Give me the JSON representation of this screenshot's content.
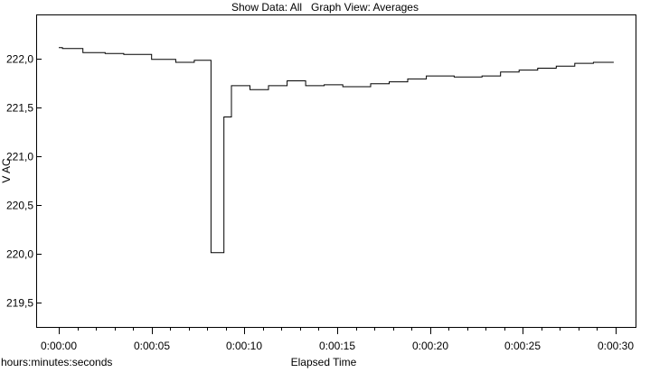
{
  "header": {
    "show_data_label": "Show Data: All",
    "graph_view_label": "Graph View: Averages"
  },
  "chart_data": {
    "type": "line",
    "line_style": "step",
    "title": "",
    "xlabel": "Elapsed Time",
    "x_unit_label": "hours:minutes:seconds",
    "ylabel": "V AC",
    "xlim": [
      0,
      30
    ],
    "ylim": [
      219.25,
      222.45
    ],
    "grid": false,
    "x_ticks": [
      {
        "value": 0,
        "label": "0:00:00"
      },
      {
        "value": 5,
        "label": "0:00:05"
      },
      {
        "value": 10,
        "label": "0:00:10"
      },
      {
        "value": 15,
        "label": "0:00:15"
      },
      {
        "value": 20,
        "label": "0:00:20"
      },
      {
        "value": 25,
        "label": "0:00:25"
      },
      {
        "value": 30,
        "label": "0:00:30"
      }
    ],
    "y_ticks": [
      {
        "value": 219.5,
        "label": "219,5"
      },
      {
        "value": 220.0,
        "label": "220,0"
      },
      {
        "value": 220.5,
        "label": "220,5"
      },
      {
        "value": 221.0,
        "label": "221,0"
      },
      {
        "value": 221.5,
        "label": "221,5"
      },
      {
        "value": 222.0,
        "label": "222,0"
      }
    ],
    "series": [
      {
        "color": "#000000",
        "x": [
          0,
          0.2,
          1.3,
          2.5,
          3.5,
          5.0,
          6.3,
          7.3,
          8.2,
          8.9,
          9.3,
          10.3,
          11.3,
          12.3,
          13.3,
          14.3,
          15.3,
          16.8,
          17.8,
          18.8,
          19.8,
          21.3,
          22.8,
          23.8,
          24.8,
          25.8,
          26.8,
          27.8,
          28.8,
          29.8
        ],
        "y": [
          222.11,
          222.1,
          222.06,
          222.05,
          222.04,
          221.99,
          221.96,
          221.98,
          220.01,
          221.4,
          221.72,
          221.68,
          221.72,
          221.77,
          221.72,
          221.73,
          221.71,
          221.74,
          221.76,
          221.79,
          221.82,
          221.81,
          221.82,
          221.86,
          221.88,
          221.9,
          221.92,
          221.95,
          221.96,
          221.96
        ]
      }
    ]
  }
}
